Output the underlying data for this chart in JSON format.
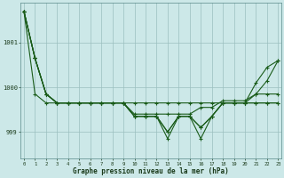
{
  "bg_color": "#cce8e8",
  "grid_color": "#9bbfbf",
  "line_color": "#1a5c1a",
  "title": "Graphe pression niveau de la mer (hPa)",
  "x_labels": [
    "0",
    "1",
    "2",
    "3",
    "4",
    "5",
    "6",
    "7",
    "8",
    "9",
    "10",
    "11",
    "12",
    "13",
    "14",
    "15",
    "16",
    "17",
    "18",
    "19",
    "20",
    "21",
    "22",
    "23"
  ],
  "ylim": [
    998.4,
    1001.9
  ],
  "yticks": [
    999,
    1000,
    1001
  ],
  "line_A": [
    1001.7,
    1000.65,
    999.85,
    999.65,
    999.65,
    999.65,
    999.65,
    999.65,
    999.65,
    999.65,
    999.65,
    999.65,
    999.65,
    999.65,
    999.65,
    999.65,
    999.65,
    999.65,
    999.65,
    999.65,
    999.65,
    999.65,
    999.65,
    999.65
  ],
  "line_B": [
    1001.7,
    1000.65,
    999.85,
    999.65,
    999.65,
    999.65,
    999.65,
    999.65,
    999.65,
    999.65,
    999.4,
    999.4,
    999.4,
    999.4,
    999.4,
    999.4,
    999.55,
    999.55,
    999.7,
    999.7,
    999.7,
    999.85,
    999.85,
    999.85
  ],
  "line_C": [
    1001.7,
    999.85,
    999.65,
    999.65,
    999.65,
    999.65,
    999.65,
    999.65,
    999.65,
    999.65,
    999.35,
    999.35,
    999.35,
    998.85,
    999.35,
    999.35,
    998.85,
    999.35,
    999.65,
    999.65,
    999.65,
    999.65,
    999.65,
    999.65
  ],
  "line_D": [
    1001.7,
    1000.65,
    999.85,
    999.65,
    999.65,
    999.65,
    999.65,
    999.65,
    999.65,
    999.65,
    999.35,
    999.35,
    999.35,
    999.0,
    999.35,
    999.35,
    999.1,
    999.35,
    999.65,
    999.65,
    999.65,
    1000.1,
    1000.45,
    1000.6
  ],
  "line_E": [
    1001.7,
    1000.65,
    999.85,
    999.65,
    999.65,
    999.65,
    999.65,
    999.65,
    999.65,
    999.65,
    999.35,
    999.35,
    999.35,
    999.0,
    999.35,
    999.35,
    999.1,
    999.35,
    999.65,
    999.65,
    999.65,
    999.85,
    1000.15,
    1000.6
  ]
}
